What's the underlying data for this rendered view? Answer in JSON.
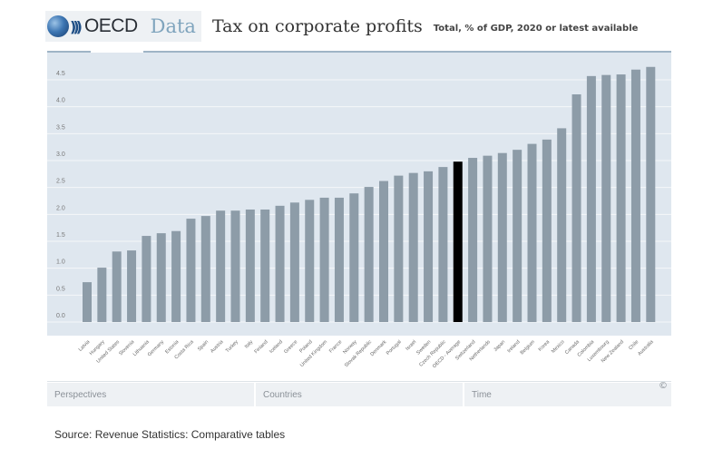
{
  "header": {
    "logo_text": "OECD",
    "data_word": "Data",
    "title": "Tax on corporate profits",
    "subtitle": "Total, % of GDP, 2020 or latest available"
  },
  "tabs": [
    {
      "label": "Perspectives"
    },
    {
      "label": "Countries"
    },
    {
      "label": "Time"
    }
  ],
  "copyright_symbol": "©",
  "source": "Source: Revenue Statistics: Comparative tables",
  "colors": {
    "bar": "#8d9ca8",
    "highlight_bar": "#000000",
    "plot_bg": "#dfe7ef",
    "gridline": "#f4f7fa"
  },
  "chart_data": {
    "type": "bar",
    "title": "Tax on corporate profits",
    "subtitle": "Total, % of GDP, 2020 or latest available",
    "xlabel": "",
    "ylabel": "",
    "ylim": [
      0,
      4.75
    ],
    "yticks": [
      "0.0",
      "0.5",
      "1.0",
      "1.5",
      "2.0",
      "2.5",
      "3.0",
      "3.5",
      "4.0",
      "4.5"
    ],
    "ytick_values": [
      0,
      0.5,
      1.0,
      1.5,
      2.0,
      2.5,
      3.0,
      3.5,
      4.0,
      4.5
    ],
    "grid": true,
    "highlight": "OECD - Average",
    "categories": [
      "Latvia",
      "Hungary",
      "United States",
      "Slovenia",
      "Lithuania",
      "Germany",
      "Estonia",
      "Costa Rica",
      "Spain",
      "Austria",
      "Turkey",
      "Italy",
      "Finland",
      "Iceland",
      "Greece",
      "Poland",
      "United Kingdom",
      "France",
      "Norway",
      "Slovak Republic",
      "Denmark",
      "Portugal",
      "Israel",
      "Sweden",
      "Czech Republic",
      "OECD - Average",
      "Switzerland",
      "Netherlands",
      "Japan",
      "Ireland",
      "Belgium",
      "Korea",
      "Mexico",
      "Canada",
      "Colombia",
      "Luxembourg",
      "New Zealand",
      "Chile",
      "Australia"
    ],
    "values": [
      0.74,
      1.01,
      1.31,
      1.33,
      1.6,
      1.65,
      1.69,
      1.92,
      1.97,
      2.07,
      2.07,
      2.09,
      2.09,
      2.16,
      2.22,
      2.27,
      2.31,
      2.31,
      2.39,
      2.51,
      2.62,
      2.72,
      2.77,
      2.8,
      2.88,
      2.98,
      3.05,
      3.09,
      3.14,
      3.2,
      3.31,
      3.39,
      3.6,
      4.23,
      4.57,
      4.59,
      4.6,
      4.69,
      4.74
    ]
  }
}
